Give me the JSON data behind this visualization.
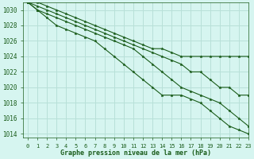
{
  "title": "Graphe pression niveau de la mer (hPa)",
  "background_color": "#d6f5f0",
  "grid_color": "#b8e0d8",
  "line_color": "#1a5c1a",
  "xlim": [
    -0.5,
    23
  ],
  "ylim": [
    1013.5,
    1031.0
  ],
  "yticks": [
    1014,
    1016,
    1018,
    1020,
    1022,
    1024,
    1026,
    1028,
    1030
  ],
  "xticks": [
    0,
    1,
    2,
    3,
    4,
    5,
    6,
    7,
    8,
    9,
    10,
    11,
    12,
    13,
    14,
    15,
    16,
    17,
    18,
    19,
    20,
    21,
    22,
    23
  ],
  "series": [
    [
      1031,
      1031,
      1030.5,
      1030,
      1029.5,
      1029,
      1028.5,
      1028,
      1027.5,
      1027,
      1026.5,
      1026,
      1025.5,
      1025,
      1025,
      1024.5,
      1024,
      1024,
      1024,
      1024,
      1024,
      1024,
      1024,
      1024
    ],
    [
      1031,
      1030.5,
      1030,
      1029.5,
      1029,
      1028.5,
      1028,
      1027.5,
      1027,
      1026.5,
      1026,
      1025.5,
      1025,
      1024.5,
      1024,
      1023.5,
      1023,
      1022,
      1022,
      1021,
      1020,
      1020,
      1019,
      1019
    ],
    [
      1031,
      1030,
      1029.5,
      1029,
      1028.5,
      1028,
      1027.5,
      1027,
      1026.5,
      1026,
      1025.5,
      1025,
      1024,
      1023,
      1022,
      1021,
      1020,
      1019.5,
      1019,
      1018.5,
      1018,
      1017,
      1016,
      1015
    ],
    [
      1031,
      1030,
      1029,
      1028,
      1027.5,
      1027,
      1026.5,
      1026,
      1025,
      1024,
      1023,
      1022,
      1021,
      1020,
      1019,
      1019,
      1019,
      1018.5,
      1018,
      1017,
      1016,
      1015,
      1014.5,
      1014
    ]
  ]
}
